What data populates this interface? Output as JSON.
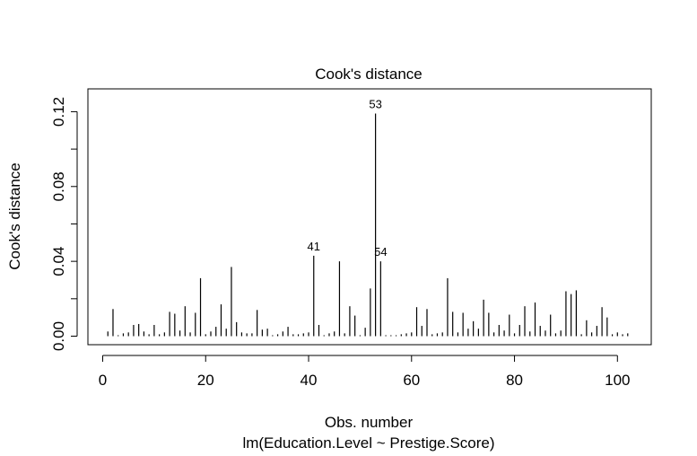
{
  "chart_data": {
    "type": "bar",
    "title": "Cook's distance",
    "xlabel": "Obs. number",
    "xlabel_sub": "lm(Education.Level ~ Prestige.Score)",
    "ylabel": "Cook's distance",
    "xlim": [
      0,
      102
    ],
    "ylim": [
      0,
      0.12
    ],
    "xticks": [
      0,
      20,
      40,
      60,
      80,
      100
    ],
    "xtick_labels": [
      "0",
      "20",
      "40",
      "60",
      "80",
      "100"
    ],
    "yticks": [
      0.0,
      0.04,
      0.08,
      0.12
    ],
    "ytick_labels": [
      "0.00",
      "0.04",
      "0.08",
      "0.12"
    ],
    "grid": false,
    "legend": "none",
    "line_color": "#000000",
    "x": [
      1,
      2,
      3,
      4,
      5,
      6,
      7,
      8,
      9,
      10,
      11,
      12,
      13,
      14,
      15,
      16,
      17,
      18,
      19,
      20,
      21,
      22,
      23,
      24,
      25,
      26,
      27,
      28,
      29,
      30,
      31,
      32,
      33,
      34,
      35,
      36,
      37,
      38,
      39,
      40,
      41,
      42,
      43,
      44,
      45,
      46,
      47,
      48,
      49,
      50,
      51,
      52,
      53,
      54,
      55,
      56,
      57,
      58,
      59,
      60,
      61,
      62,
      63,
      64,
      65,
      66,
      67,
      68,
      69,
      70,
      71,
      72,
      73,
      74,
      75,
      76,
      77,
      78,
      79,
      80,
      81,
      82,
      83,
      84,
      85,
      86,
      87,
      88,
      89,
      90,
      91,
      92,
      93,
      94,
      95,
      96,
      97,
      98,
      99,
      100,
      101,
      102
    ],
    "values": [
      0.0025,
      0.0145,
      0.0005,
      0.0015,
      0.002,
      0.006,
      0.0065,
      0.0025,
      0.001,
      0.006,
      0.001,
      0.002,
      0.013,
      0.012,
      0.003,
      0.016,
      0.002,
      0.0125,
      0.031,
      0.001,
      0.0025,
      0.005,
      0.017,
      0.004,
      0.037,
      0.0075,
      0.002,
      0.0015,
      0.0015,
      0.014,
      0.0035,
      0.004,
      0.0005,
      0.001,
      0.0025,
      0.005,
      0.001,
      0.001,
      0.0015,
      0.002,
      0.043,
      0.006,
      0.0005,
      0.0015,
      0.0025,
      0.04,
      0.0015,
      0.016,
      0.011,
      0.0005,
      0.0045,
      0.0255,
      0.119,
      0.04,
      0.0005,
      0.0005,
      0.0005,
      0.001,
      0.0015,
      0.002,
      0.0155,
      0.0055,
      0.0145,
      0.001,
      0.0015,
      0.002,
      0.031,
      0.013,
      0.002,
      0.0125,
      0.004,
      0.008,
      0.004,
      0.0195,
      0.0125,
      0.002,
      0.006,
      0.003,
      0.0115,
      0.0015,
      0.006,
      0.016,
      0.0025,
      0.018,
      0.0055,
      0.003,
      0.0115,
      0.0015,
      0.003,
      0.024,
      0.0225,
      0.0245,
      0.001,
      0.0085,
      0.002,
      0.0055,
      0.0155,
      0.01,
      0.001,
      0.002,
      0.001,
      0.0015
    ],
    "annotations": [
      {
        "x": 41,
        "text": "41"
      },
      {
        "x": 53,
        "text": "53"
      },
      {
        "x": 54,
        "text": "54"
      }
    ]
  }
}
